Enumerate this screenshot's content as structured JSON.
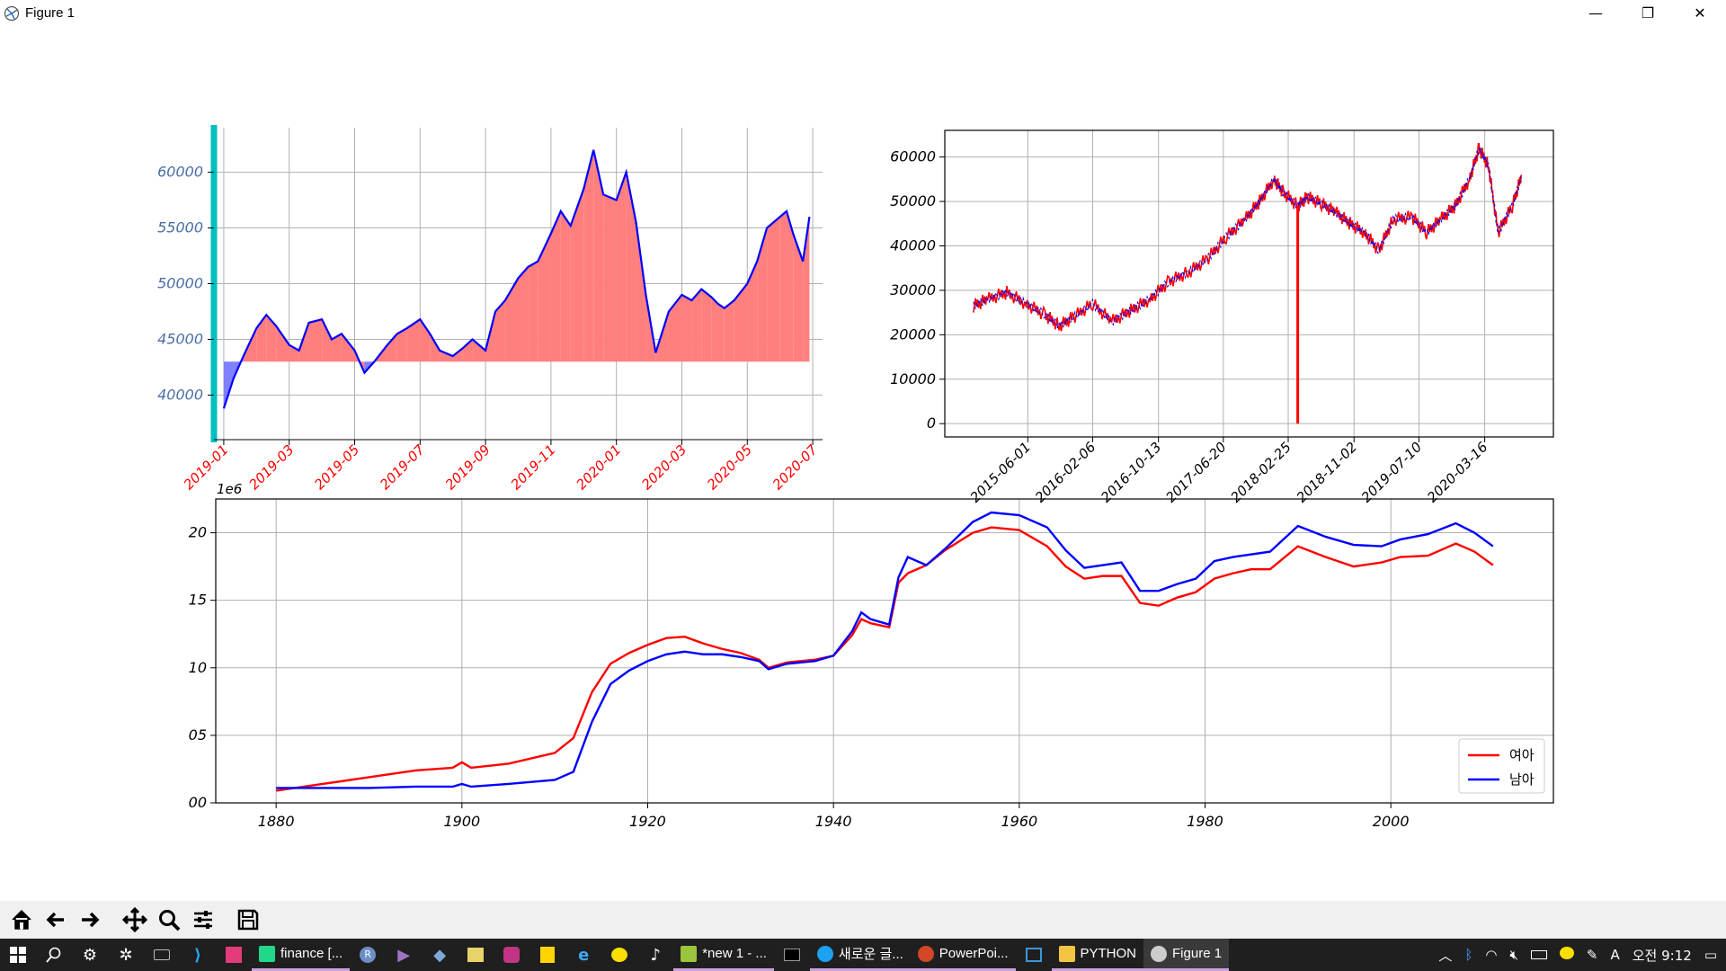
{
  "window": {
    "title": "Figure 1",
    "minimize": "—",
    "restore": "❐",
    "close": "✕"
  },
  "chart_data": [
    {
      "type": "area",
      "baseline": 43000,
      "x_tick_labels": [
        "2019-01",
        "2019-03",
        "2019-05",
        "2019-07",
        "2019-09",
        "2019-11",
        "2020-01",
        "2020-03",
        "2020-05",
        "2020-07"
      ],
      "y_tick_labels": [
        "40000",
        "45000",
        "50000",
        "55000",
        "60000"
      ],
      "y_ticks": [
        40000,
        45000,
        50000,
        55000,
        60000
      ],
      "ylim": [
        36000,
        64000
      ],
      "x_month_range": [
        -0.3,
        18.3
      ],
      "series": [
        {
          "x": [
            0,
            0.3,
            0.6,
            1,
            1.3,
            1.6,
            2,
            2.3,
            2.6,
            3,
            3.3,
            3.6,
            4,
            4.3,
            4.6,
            5,
            5.3,
            5.6,
            6,
            6.3,
            6.6,
            7,
            7.3,
            7.6,
            8,
            8.3,
            8.6,
            9,
            9.3,
            9.6,
            10,
            10.3,
            10.6,
            11,
            11.3,
            11.6,
            12,
            12.3,
            12.6,
            12.9,
            13.2,
            13.6,
            14,
            14.3,
            14.6,
            14.9,
            15.1,
            15.3,
            15.6,
            16,
            16.3,
            16.6,
            17,
            17.2,
            17.4,
            17.7,
            17.9
          ],
          "values": [
            38800,
            41500,
            43500,
            46000,
            47200,
            46200,
            44500,
            44000,
            46500,
            46800,
            45000,
            45500,
            44000,
            42000,
            43000,
            44500,
            45500,
            46000,
            46800,
            45500,
            44000,
            43500,
            44200,
            45000,
            44000,
            47500,
            48500,
            50500,
            51500,
            52000,
            54500,
            56500,
            55200,
            58500,
            62000,
            58000,
            57500,
            60000,
            55500,
            49000,
            43800,
            47500,
            49000,
            48500,
            49500,
            48800,
            48200,
            47800,
            48500,
            50000,
            52000,
            55000,
            56000,
            56500,
            54500,
            52000,
            56000
          ]
        }
      ],
      "colors": {
        "line": "#0000ff",
        "above": "#ff7f7f",
        "below": "#7f7fff",
        "spine": "#00bfbf",
        "xtick": "#ff0000",
        "ytick": "#4a6fa5"
      }
    },
    {
      "type": "line",
      "x_tick_labels": [
        "2015-06-01",
        "2016-02-06",
        "2016-10-13",
        "2017-06-20",
        "2018-02-25",
        "2018-11-02",
        "2019-07-10",
        "2020-03-16"
      ],
      "y_tick_labels": [
        "0",
        "10000",
        "20000",
        "30000",
        "40000",
        "50000",
        "60000"
      ],
      "y_ticks": [
        0,
        10000,
        20000,
        30000,
        40000,
        50000,
        60000
      ],
      "ylim": [
        -3000,
        66000
      ],
      "x_year_range": [
        2014.55,
        2020.93
      ],
      "series": [
        {
          "x": [
            2014.85,
            2015.0,
            2015.2,
            2015.4,
            2015.6,
            2015.75,
            2015.9,
            2016.1,
            2016.3,
            2016.5,
            2016.7,
            2016.9,
            2017.1,
            2017.3,
            2017.5,
            2017.7,
            2017.85,
            2018.0,
            2018.1,
            2018.25,
            2018.35,
            2018.5,
            2018.65,
            2018.8,
            2018.95,
            2019.1,
            2019.25,
            2019.45,
            2019.6,
            2019.75,
            2019.9,
            2020.05,
            2020.15,
            2020.25,
            2020.35,
            2020.5,
            2020.6
          ],
          "values": [
            26500,
            28000,
            29500,
            27000,
            24500,
            22000,
            24000,
            27000,
            23000,
            25500,
            28000,
            32000,
            34000,
            37000,
            42000,
            46000,
            50000,
            55000,
            52000,
            49000,
            51000,
            49500,
            47500,
            45000,
            43000,
            39000,
            46000,
            46500,
            43000,
            46000,
            49000,
            55000,
            62000,
            58000,
            43000,
            49000,
            56000
          ],
          "name": ""
        }
      ],
      "outlier": {
        "x": 2018.25,
        "value": 0
      },
      "colors": {
        "line": "#ff0000",
        "overlay": "#0000ff"
      }
    },
    {
      "type": "line",
      "offset_label": "1e6",
      "x_tick_labels": [
        "1880",
        "1900",
        "1920",
        "1940",
        "1960",
        "1980",
        "2000"
      ],
      "y_tick_labels": [
        "00",
        "05",
        "10",
        "15",
        "20"
      ],
      "y_ticks": [
        0,
        5,
        10,
        15,
        20
      ],
      "x_ticks": [
        1880,
        1900,
        1920,
        1940,
        1960,
        1980,
        2000
      ],
      "xlim": [
        1873.5,
        2017.5
      ],
      "ylim": [
        0,
        22.5
      ],
      "x": [
        1880,
        1885,
        1890,
        1895,
        1899,
        1900,
        1901,
        1905,
        1910,
        1912,
        1914,
        1916,
        1918,
        1920,
        1922,
        1924,
        1926,
        1928,
        1930,
        1932,
        1933,
        1935,
        1938,
        1940,
        1942,
        1943,
        1944,
        1946,
        1947,
        1948,
        1950,
        1952,
        1955,
        1957,
        1960,
        1963,
        1965,
        1967,
        1969,
        1971,
        1973,
        1975,
        1977,
        1979,
        1981,
        1983,
        1985,
        1987,
        1990,
        1993,
        1996,
        1999,
        2001,
        2004,
        2007,
        2009,
        2011
      ],
      "series": [
        {
          "name": "여아",
          "color": "#ff0000",
          "values": [
            0.9,
            1.4,
            1.9,
            2.4,
            2.6,
            3.0,
            2.6,
            2.9,
            3.7,
            4.8,
            8.2,
            10.3,
            11.1,
            11.7,
            12.2,
            12.3,
            11.8,
            11.4,
            11.1,
            10.6,
            10.0,
            10.4,
            10.6,
            10.9,
            12.4,
            13.6,
            13.3,
            13.0,
            16.3,
            17.0,
            17.6,
            18.7,
            20.0,
            20.4,
            20.2,
            19.0,
            17.5,
            16.6,
            16.8,
            16.8,
            14.8,
            14.6,
            15.2,
            15.6,
            16.6,
            17.0,
            17.3,
            17.3,
            19.0,
            18.2,
            17.5,
            17.8,
            18.2,
            18.3,
            19.2,
            18.6,
            17.6
          ]
        },
        {
          "name": "남아",
          "color": "#0000ff",
          "values": [
            1.1,
            1.1,
            1.1,
            1.2,
            1.2,
            1.4,
            1.2,
            1.4,
            1.7,
            2.3,
            6.0,
            8.8,
            9.8,
            10.5,
            11.0,
            11.2,
            11.0,
            11.0,
            10.8,
            10.5,
            9.9,
            10.3,
            10.5,
            10.9,
            12.7,
            14.1,
            13.6,
            13.2,
            16.7,
            18.2,
            17.6,
            18.8,
            20.8,
            21.5,
            21.3,
            20.4,
            18.7,
            17.4,
            17.6,
            17.8,
            15.7,
            15.7,
            16.2,
            16.6,
            17.9,
            18.2,
            18.4,
            18.6,
            20.5,
            19.7,
            19.1,
            19.0,
            19.5,
            19.9,
            20.7,
            20.0,
            19.0
          ]
        }
      ],
      "legend": "lower right"
    }
  ],
  "toolbar": {
    "home": "home-icon",
    "back": "back-arrow-icon",
    "forward": "forward-arrow-icon",
    "pan": "pan-icon",
    "zoom": "zoom-icon",
    "configure": "configure-subplots-icon",
    "save": "save-icon"
  },
  "taskbar": {
    "apps": [
      {
        "label": "finance [...",
        "color": "#21d789"
      },
      {
        "label": "*new 1 - ...",
        "color": "#9bc53d"
      },
      {
        "label": "새로운 글...",
        "color": "#1da1f2"
      },
      {
        "label": "PowerPoi...",
        "color": "#d24726"
      },
      {
        "label": "PYTHON",
        "color": "#f4c542"
      },
      {
        "label": "Figure 1",
        "color": "#cccccc"
      }
    ],
    "time": "오전 9:12",
    "ime": "A"
  }
}
